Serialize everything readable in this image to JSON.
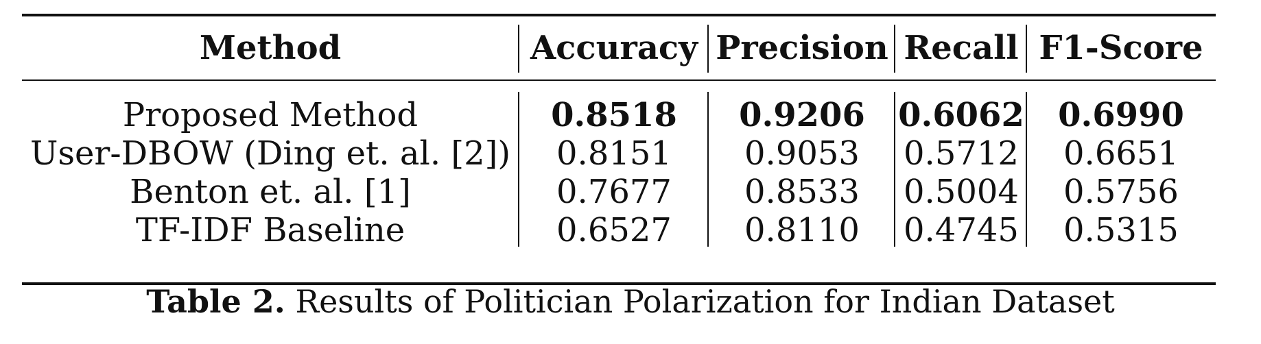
{
  "table": {
    "headers": [
      "Method",
      "Accuracy",
      "Precision",
      "Recall",
      "F1-Score"
    ],
    "rows": [
      {
        "method": "Proposed Method",
        "accuracy": "0.8518",
        "precision": "0.9206",
        "recall": "0.6062",
        "f1": "0.6990"
      },
      {
        "method": "User-DBOW (Ding et. al. [2])",
        "accuracy": "0.8151",
        "precision": "0.9053",
        "recall": "0.5712",
        "f1": "0.6651"
      },
      {
        "method": "Benton et. al. [1]",
        "accuracy": "0.7677",
        "precision": "0.8533",
        "recall": "0.5004",
        "f1": "0.5756"
      },
      {
        "method": "TF-IDF Baseline",
        "accuracy": "0.6527",
        "precision": "0.8110",
        "recall": "0.4745",
        "f1": "0.5315"
      }
    ]
  },
  "caption": {
    "label": "Table 2.",
    "text": "Results of Politician Polarization for Indian Dataset"
  }
}
